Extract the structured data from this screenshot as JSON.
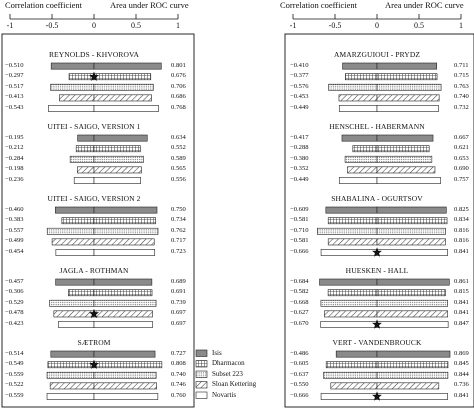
{
  "header": {
    "left_title": "Correlation coefficient",
    "right_title": "Area under ROC curve"
  },
  "axis": {
    "ticks": [
      "-1",
      "-0.5",
      "0",
      "0.5",
      "1"
    ]
  },
  "legend": [
    {
      "label": "Isis",
      "pattern": "dark"
    },
    {
      "label": "Dharmacon",
      "pattern": "grid"
    },
    {
      "label": "Subset 223",
      "pattern": "dots"
    },
    {
      "label": "Sloan Kettering",
      "pattern": "diag"
    },
    {
      "label": "Novartis",
      "pattern": "white"
    }
  ],
  "chart_data": {
    "type": "bar",
    "series_patterns": [
      "Isis",
      "Dharmacon",
      "Subset 223",
      "Sloan Kettering",
      "Novartis"
    ],
    "panels": [
      {
        "title": "REYNOLDS - KHVOROVA",
        "corr": [
          "−0.510",
          "−0.297",
          "−0.517",
          "−0.413",
          "−0.543"
        ],
        "auc": [
          "0.801",
          "0.676",
          "0.706",
          "0.686",
          "0.768"
        ],
        "corr_values": [
          -0.51,
          -0.297,
          -0.517,
          -0.413,
          -0.543
        ],
        "auc_values": [
          0.801,
          0.676,
          0.706,
          0.686,
          0.768
        ],
        "star_row": 1
      },
      {
        "title": "UITEI - SAIGO, VERSION 1",
        "corr": [
          "−0.195",
          "−0.212",
          "−0.284",
          "−0.198",
          "−0.236"
        ],
        "auc": [
          "0.634",
          "0.552",
          "0.589",
          "0.565",
          "0.556"
        ],
        "corr_values": [
          -0.195,
          -0.212,
          -0.284,
          -0.198,
          -0.236
        ],
        "auc_values": [
          0.634,
          0.552,
          0.589,
          0.565,
          0.556
        ],
        "star_row": null
      },
      {
        "title": "UITEI - SAIGO, VERSION 2",
        "corr": [
          "−0.460",
          "−0.383",
          "−0.557",
          "−0.499",
          "−0.454"
        ],
        "auc": [
          "0.750",
          "0.734",
          "0.762",
          "0.717",
          "0.723"
        ],
        "corr_values": [
          -0.46,
          -0.383,
          -0.557,
          -0.499,
          -0.454
        ],
        "auc_values": [
          0.75,
          0.734,
          0.762,
          0.717,
          0.723
        ],
        "star_row": null
      },
      {
        "title": "JAGLA - ROTHMAN",
        "corr": [
          "−0.457",
          "−0.306",
          "−0.529",
          "−0.478",
          "−0.423"
        ],
        "auc": [
          "0.689",
          "0.691",
          "0.739",
          "0.697",
          "0.697"
        ],
        "corr_values": [
          -0.457,
          -0.306,
          -0.529,
          -0.478,
          -0.423
        ],
        "auc_values": [
          0.689,
          0.691,
          0.739,
          0.697,
          0.697
        ],
        "star_row": 3
      },
      {
        "title": "SÆTROM",
        "corr": [
          "−0.514",
          "−0.549",
          "−0.559",
          "−0.522",
          "−0.559"
        ],
        "auc": [
          "0.727",
          "0.808",
          "0.740",
          "0.746",
          "0.760"
        ],
        "corr_values": [
          -0.514,
          -0.549,
          -0.559,
          -0.522,
          -0.559
        ],
        "auc_values": [
          0.727,
          0.808,
          0.74,
          0.746,
          0.76
        ],
        "star_row": 1
      },
      {
        "title": "AMARZGUIOUI - PRYDZ",
        "corr": [
          "−0.410",
          "−0.377",
          "−0.576",
          "−0.453",
          "−0.449"
        ],
        "auc": [
          "0.711",
          "0.715",
          "0.763",
          "0.740",
          "0.732"
        ],
        "corr_values": [
          -0.41,
          -0.377,
          -0.576,
          -0.453,
          -0.449
        ],
        "auc_values": [
          0.711,
          0.715,
          0.763,
          0.74,
          0.732
        ],
        "star_row": null
      },
      {
        "title": "HENSCHEL - HABERMANN",
        "corr": [
          "−0.417",
          "−0.288",
          "−0.380",
          "−0.352",
          "−0.449"
        ],
        "auc": [
          "0.667",
          "0.621",
          "0.653",
          "0.690",
          "0.757"
        ],
        "corr_values": [
          -0.417,
          -0.288,
          -0.38,
          -0.352,
          -0.449
        ],
        "auc_values": [
          0.667,
          0.621,
          0.653,
          0.69,
          0.757
        ],
        "star_row": null
      },
      {
        "title": "SHABALINA - OGURTSOV",
        "corr": [
          "−0.609",
          "−0.581",
          "−0.710",
          "−0.581",
          "−0.666"
        ],
        "auc": [
          "0.825",
          "0.834",
          "0.816",
          "0.816",
          "0.841"
        ],
        "corr_values": [
          -0.609,
          -0.581,
          -0.71,
          -0.581,
          -0.666
        ],
        "auc_values": [
          0.825,
          0.834,
          0.816,
          0.816,
          0.841
        ],
        "star_row": 4
      },
      {
        "title": "HUESKEN - HALL",
        "corr": [
          "−0.684",
          "−0.582",
          "−0.668",
          "−0.627",
          "−0.670"
        ],
        "auc": [
          "0.861",
          "0.815",
          "0.841",
          "0.841",
          "0.847"
        ],
        "corr_values": [
          -0.684,
          -0.582,
          -0.668,
          -0.627,
          -0.67
        ],
        "auc_values": [
          0.861,
          0.815,
          0.841,
          0.841,
          0.847
        ],
        "star_row": 4
      },
      {
        "title": "VERT - VANDENBROUCK",
        "corr": [
          "−0.486",
          "−0.605",
          "−0.637",
          "−0.550",
          "−0.666"
        ],
        "auc": [
          "0.869",
          "0.845",
          "0.844",
          "0.736",
          "0.841"
        ],
        "corr_values": [
          -0.486,
          -0.605,
          -0.637,
          -0.55,
          -0.666
        ],
        "auc_values": [
          0.869,
          0.845,
          0.844,
          0.736,
          0.841
        ],
        "star_row": 4
      }
    ]
  }
}
